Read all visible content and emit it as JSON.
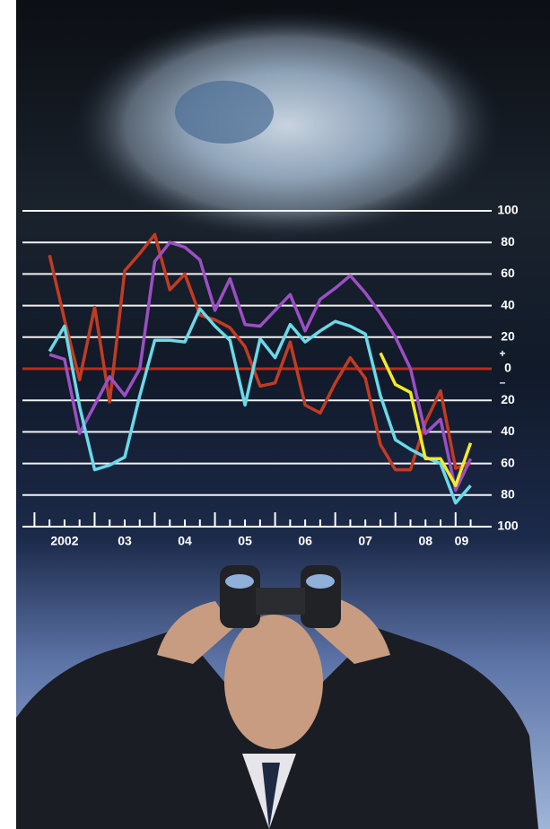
{
  "chart_data": {
    "type": "line",
    "x": [
      2002.25,
      2002.5,
      2002.75,
      2003,
      2003.25,
      2003.5,
      2003.75,
      2004,
      2004.25,
      2004.5,
      2004.75,
      2005,
      2005.25,
      2005.5,
      2005.75,
      2006,
      2006.25,
      2006.5,
      2006.75,
      2007,
      2007.25,
      2007.5,
      2007.75,
      2008,
      2008.25,
      2008.5,
      2008.75,
      2009,
      2009.25
    ],
    "series": [
      {
        "color": "#c23b22",
        "values": [
          72,
          31,
          -7,
          39,
          -21,
          62,
          73,
          85,
          50,
          60,
          34,
          31,
          26,
          14,
          -11,
          -9,
          17,
          -23,
          -28,
          -9,
          7,
          -6,
          -48,
          -64,
          -64,
          -34,
          -14,
          -63,
          -60
        ]
      },
      {
        "color": "#9c4fc4",
        "values": [
          9,
          6,
          -41,
          -23,
          -5,
          -17,
          0,
          68,
          80,
          77,
          69,
          37,
          57,
          28,
          27,
          37,
          47,
          24,
          44,
          51,
          59,
          48,
          35,
          20,
          0,
          -41,
          -32,
          -77,
          -57
        ]
      },
      {
        "color": "#6ad9e8",
        "values": [
          11,
          27,
          -24,
          -64,
          -61,
          -56,
          -17,
          18,
          18,
          17,
          38,
          27,
          18,
          -23,
          19,
          7,
          28,
          17,
          24,
          30,
          27,
          22,
          -17,
          -45,
          -51,
          -56,
          -60,
          -85,
          -74
        ]
      },
      {
        "color": "#f3ea2a",
        "values": [
          null,
          null,
          null,
          null,
          null,
          null,
          null,
          null,
          null,
          null,
          null,
          null,
          null,
          null,
          null,
          null,
          null,
          null,
          null,
          null,
          null,
          null,
          10,
          -10,
          -15,
          -57,
          -57,
          -74,
          -47
        ]
      }
    ],
    "xlim": [
      2001.8,
      2009.6
    ],
    "ylim": [
      -100,
      100
    ],
    "xticks": [
      {
        "value": 2002.5,
        "label": "2002"
      },
      {
        "value": 2003.5,
        "label": "03"
      },
      {
        "value": 2004.5,
        "label": "04"
      },
      {
        "value": 2005.5,
        "label": "05"
      },
      {
        "value": 2006.5,
        "label": "06"
      },
      {
        "value": 2007.5,
        "label": "07"
      },
      {
        "value": 2008.5,
        "label": "08"
      },
      {
        "value": 2009.1,
        "label": "09"
      }
    ],
    "x_tick_marks": [
      2002,
      2002.25,
      2002.5,
      2002.75,
      2003,
      2003.25,
      2003.5,
      2003.75,
      2004,
      2004.25,
      2004.5,
      2004.75,
      2005,
      2005.25,
      2005.5,
      2005.75,
      2006,
      2006.25,
      2006.5,
      2006.75,
      2007,
      2007.25,
      2007.5,
      2007.75,
      2008,
      2008.25,
      2008.5,
      2008.75,
      2009,
      2009.25
    ],
    "yticks": [
      100,
      80,
      60,
      40,
      20,
      0,
      {
        "value": -20,
        "label": "20"
      },
      {
        "value": -40,
        "label": "40"
      },
      {
        "value": -60,
        "label": "60"
      },
      {
        "value": -80,
        "label": "80"
      },
      {
        "value": -100,
        "label": "100"
      }
    ],
    "zero_line_color": "#c0281c",
    "sign_labels": [
      "+",
      "–"
    ],
    "grid": true
  }
}
